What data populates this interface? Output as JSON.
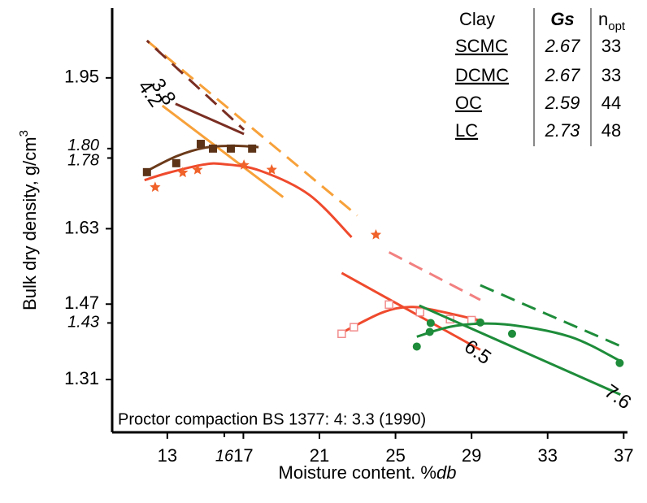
{
  "chart_data": {
    "type": "scatter",
    "xlabel": "Moisture content. %",
    "xlabel_italic": "db",
    "ylabel": "Bulk dry density, g/cm",
    "ylabel_sup": "3",
    "annotation": "Proctor compaction BS 1377: 4: 3.3 (1990)",
    "xlim": [
      10.1,
      37.2
    ],
    "ylim": [
      1.198,
      2.098
    ],
    "xticks": [
      13,
      17,
      21,
      25,
      29,
      33,
      37
    ],
    "xticks_italic": [
      16
    ],
    "yticks": [
      1.31,
      1.47,
      1.63,
      1.95
    ],
    "yticks_italic": [
      1.43,
      1.78,
      {
        "value": 1.8,
        "label": "1.80"
      }
    ],
    "series": [
      {
        "style": "dashed",
        "color": "#f7a13a",
        "x": [
          11.93,
          22.99
        ],
        "y": [
          2.029,
          1.658
        ]
      },
      {
        "style": "dashed",
        "color": "#7a2e22",
        "x": [
          11.93,
          17.03
        ],
        "y": [
          2.029,
          1.84
        ]
      },
      {
        "style": "solid",
        "color": "#7a2e22",
        "x": [
          13.43,
          17.03
        ],
        "y": [
          1.895,
          1.831
        ],
        "label": "3.8",
        "label_at": "start"
      },
      {
        "style": "solid",
        "color": "#f7a13a",
        "x": [
          12.74,
          19.09
        ],
        "y": [
          1.891,
          1.697
        ],
        "label": "4.2",
        "label_at": "start"
      },
      {
        "style": "solid",
        "color": "#6b3a1a",
        "x": [
          11.9,
          13.5,
          15,
          16.5,
          17.8
        ],
        "y": [
          1.752,
          1.784,
          1.802,
          1.806,
          1.803
        ]
      },
      {
        "style": "points",
        "marker": "square",
        "color": "#5c3317",
        "x": [
          11.93,
          13.47,
          14.76,
          15.4,
          16.34,
          17.46
        ],
        "y": [
          1.75,
          1.769,
          1.81,
          1.8,
          1.8,
          1.8
        ]
      },
      {
        "style": "solid",
        "color": "#ef4a2d",
        "x": [
          11.8,
          13,
          14.89,
          15.96,
          17.89,
          20.46,
          22.69
        ],
        "y": [
          1.733,
          1.748,
          1.766,
          1.767,
          1.753,
          1.702,
          1.612
        ]
      },
      {
        "style": "points",
        "marker": "star",
        "color": "#f0622a",
        "x": [
          12.36,
          13.81,
          14.59,
          17.03,
          18.49,
          23.97
        ],
        "y": [
          1.718,
          1.749,
          1.755,
          1.765,
          1.755,
          1.617
        ]
      },
      {
        "style": "dashed",
        "color": "#f28080",
        "x": [
          24.66,
          29.46
        ],
        "y": [
          1.58,
          1.479
        ]
      },
      {
        "style": "solid",
        "color": "#ef4a2d",
        "x": [
          22.17,
          29.46
        ],
        "y": [
          1.536,
          1.373
        ],
        "label": "6.5",
        "label_at": "end"
      },
      {
        "style": "solid",
        "color": "#ef4a2d",
        "x": [
          22.17,
          24.3,
          25.8,
          27.3,
          29.46
        ],
        "y": [
          1.409,
          1.452,
          1.464,
          1.455,
          1.435
        ]
      },
      {
        "style": "points",
        "marker": "hollow-square",
        "color": "#f28c8c",
        "x": [
          22.17,
          22.81,
          24.66,
          26.29,
          27.87,
          29.0
        ],
        "y": [
          1.407,
          1.421,
          1.469,
          1.453,
          1.438,
          1.436
        ]
      },
      {
        "style": "dashed",
        "color": "#1e8c3a",
        "x": [
          29.46,
          36.83
        ],
        "y": [
          1.51,
          1.381
        ]
      },
      {
        "style": "solid",
        "color": "#1e8c3a",
        "x": [
          26.25,
          36.83
        ],
        "y": [
          1.467,
          1.278
        ],
        "label": "7.6",
        "label_at": "end"
      },
      {
        "style": "solid",
        "color": "#1e8c3a",
        "x": [
          26.12,
          28.17,
          30.74,
          34.17,
          36.83
        ],
        "y": [
          1.401,
          1.424,
          1.427,
          1.401,
          1.349
        ]
      },
      {
        "style": "points",
        "marker": "circle",
        "color": "#1e8c3a",
        "x": [
          26.12,
          26.8,
          26.85,
          29.46,
          31.13,
          36.79
        ],
        "y": [
          1.38,
          1.411,
          1.43,
          1.431,
          1.407,
          1.345
        ]
      }
    ],
    "table": {
      "header": [
        "Clay",
        "Gs",
        "n"
      ],
      "header_sub": "opt",
      "rows": [
        [
          "SCMC",
          "2.67",
          "33"
        ],
        [
          "DCMC",
          "2.67",
          "33"
        ],
        [
          "OC",
          "2.59",
          "44"
        ],
        [
          "LC",
          "2.73",
          "48"
        ]
      ],
      "colors": [
        "#8b2a1a",
        "#f7a13a",
        "#ef4a2d",
        "#1e8c3a"
      ]
    }
  }
}
